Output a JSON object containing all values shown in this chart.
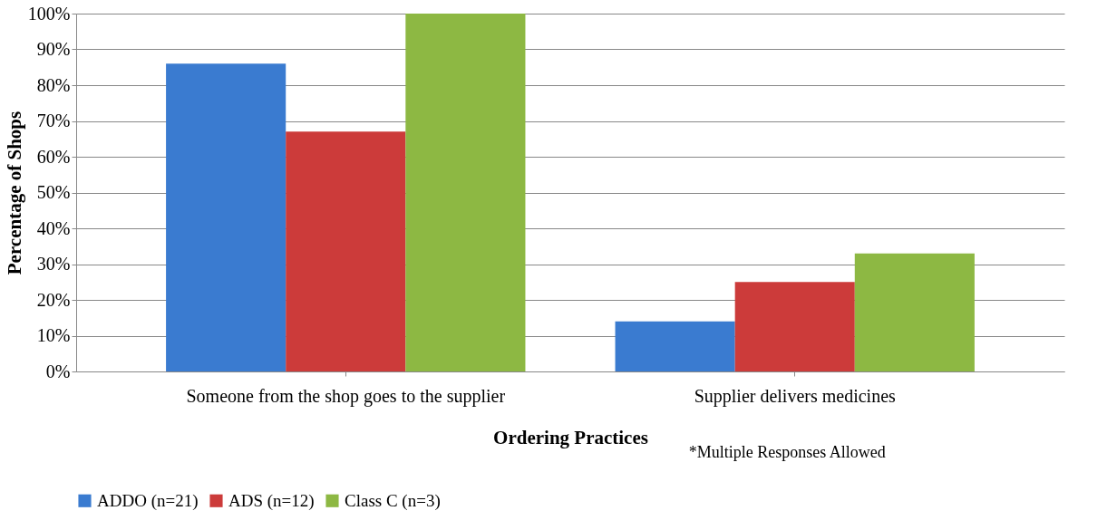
{
  "chart_data": {
    "type": "bar",
    "xlabel": "Ordering Practices",
    "ylabel": "Percentage of Shops",
    "categories": [
      "Someone from the shop goes to the supplier",
      "Supplier delivers medicines"
    ],
    "series": [
      {
        "name": "ADDO (n=21)",
        "color": "#3a7bd0",
        "values": [
          86,
          14
        ]
      },
      {
        "name": "ADS (n=12)",
        "color": "#cc3b3a",
        "values": [
          67,
          25
        ]
      },
      {
        "name": "Class C (n=3)",
        "color": "#8db843",
        "values": [
          100,
          33
        ]
      }
    ],
    "ylim": [
      0,
      100
    ],
    "yticks": [
      {
        "value": 0,
        "label": "0%"
      },
      {
        "value": 10,
        "label": "10%"
      },
      {
        "value": 20,
        "label": "20%"
      },
      {
        "value": 30,
        "label": "30%"
      },
      {
        "value": 40,
        "label": "40%"
      },
      {
        "value": 50,
        "label": "50%"
      },
      {
        "value": 60,
        "label": "60%"
      },
      {
        "value": 70,
        "label": "70%"
      },
      {
        "value": 80,
        "label": "80%"
      },
      {
        "value": 90,
        "label": "90%"
      },
      {
        "value": 100,
        "label": "100%"
      }
    ],
    "grid": "y",
    "legend": "bottom",
    "annotations": [
      "*Multiple Responses Allowed"
    ]
  }
}
